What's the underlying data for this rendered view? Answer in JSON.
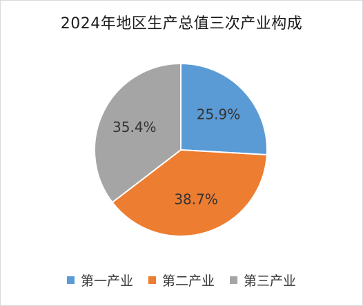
{
  "chart_data": {
    "type": "pie",
    "title": "2024年地区生产总值三次产业构成",
    "categories": [
      "第一产业",
      "第二产业",
      "第三产业"
    ],
    "values": [
      25.9,
      38.7,
      35.4
    ],
    "labels": [
      "25.9%",
      "38.7%",
      "35.4%"
    ],
    "colors": [
      "#5b9bd5",
      "#ed7d31",
      "#a5a5a5"
    ],
    "unit": "%",
    "start_angle": "12 o'clock",
    "direction": "clockwise",
    "legend_position": "bottom"
  }
}
